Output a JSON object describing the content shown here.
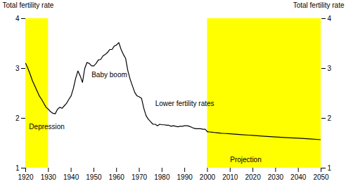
{
  "chart_data": {
    "type": "line",
    "ylabel": "Total fertility rate",
    "y2label": "Total fertility rate",
    "xlim": [
      1920,
      2050
    ],
    "xticks": [
      1920,
      1930,
      1940,
      1950,
      1960,
      1970,
      1980,
      1990,
      2000,
      2010,
      2020,
      2030,
      2040,
      2050
    ],
    "ylim": [
      1,
      4
    ],
    "yticks": [
      1,
      2,
      3,
      4
    ],
    "y2lim": [
      1,
      4
    ],
    "y2ticks": [
      1,
      2,
      3,
      4
    ],
    "highlight_regions": [
      {
        "x": [
          1920,
          1930
        ],
        "color": "#FFFF00"
      },
      {
        "x": [
          2000,
          2050
        ],
        "color": "#FFFF00"
      }
    ],
    "series": [
      {
        "color": "#000000",
        "x": [
          1920,
          1921,
          1922,
          1923,
          1924,
          1925,
          1926,
          1927,
          1928,
          1929,
          1930,
          1931,
          1932,
          1933,
          1934,
          1935,
          1936,
          1937,
          1938,
          1939,
          1940,
          1941,
          1942,
          1943,
          1944,
          1945,
          1946,
          1947,
          1948,
          1949,
          1950,
          1951,
          1952,
          1953,
          1954,
          1955,
          1956,
          1957,
          1958,
          1959,
          1960,
          1961,
          1962,
          1963,
          1964,
          1965,
          1966,
          1967,
          1968,
          1969,
          1970,
          1971,
          1972,
          1973,
          1974,
          1975,
          1976,
          1977,
          1978,
          1979,
          1980,
          1981,
          1982,
          1983,
          1984,
          1985,
          1986,
          1987,
          1988,
          1989,
          1990,
          1991,
          1992,
          1993,
          1994,
          1995,
          1996,
          1997,
          1998,
          1999,
          2000
        ],
        "values": [
          3.1,
          3.0,
          2.88,
          2.75,
          2.65,
          2.55,
          2.45,
          2.38,
          2.3,
          2.22,
          2.18,
          2.13,
          2.1,
          2.09,
          2.18,
          2.22,
          2.2,
          2.25,
          2.3,
          2.38,
          2.45,
          2.6,
          2.8,
          2.95,
          2.85,
          2.72,
          3.0,
          3.12,
          3.1,
          3.05,
          3.05,
          3.1,
          3.17,
          3.18,
          3.25,
          3.28,
          3.32,
          3.38,
          3.38,
          3.45,
          3.47,
          3.52,
          3.38,
          3.28,
          3.2,
          2.95,
          2.78,
          2.65,
          2.52,
          2.45,
          2.43,
          2.4,
          2.2,
          2.05,
          1.98,
          1.93,
          1.88,
          1.88,
          1.85,
          1.88,
          1.87,
          1.87,
          1.86,
          1.86,
          1.84,
          1.85,
          1.84,
          1.83,
          1.84,
          1.84,
          1.85,
          1.85,
          1.84,
          1.82,
          1.8,
          1.79,
          1.79,
          1.79,
          1.78,
          1.78,
          1.73
        ]
      },
      {
        "color": "#000000",
        "x": [
          2000,
          2001,
          2002,
          2003,
          2004,
          2005,
          2006,
          2007,
          2008,
          2009,
          2010,
          2012,
          2015,
          2018,
          2020,
          2025,
          2030,
          2035,
          2040,
          2045,
          2050
        ],
        "values": [
          1.73,
          1.725,
          1.72,
          1.715,
          1.71,
          1.705,
          1.7,
          1.697,
          1.694,
          1.691,
          1.688,
          1.682,
          1.672,
          1.662,
          1.656,
          1.64,
          1.625,
          1.612,
          1.6,
          1.585,
          1.57
        ]
      }
    ],
    "annotations": [
      {
        "text": "Depression",
        "x": 1921.5,
        "y": 1.78
      },
      {
        "text": "Baby boom",
        "x": 1949,
        "y": 2.83
      },
      {
        "text": "Lower fertility rates",
        "x": 1977,
        "y": 2.25
      },
      {
        "text": "Projection",
        "x": 2010,
        "y": 1.12
      }
    ]
  }
}
